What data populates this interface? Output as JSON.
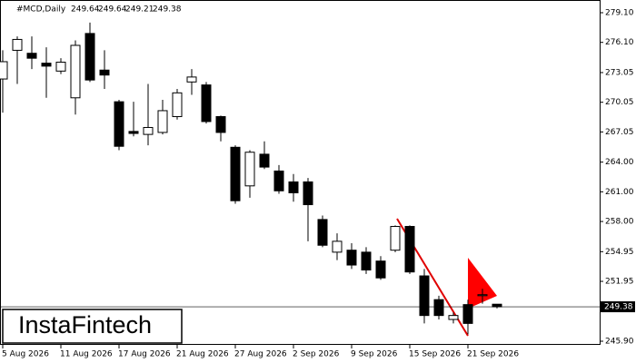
{
  "chart_data": {
    "type": "candlestick",
    "title": "#MCD,Daily",
    "header_ohlc": [
      249.64,
      249.64,
      249.21,
      249.38
    ],
    "logo": "InstaFintech",
    "categories": [
      "5 Aug 2026",
      null,
      null,
      null,
      "11 Aug 2026",
      null,
      null,
      null,
      "17 Aug 2026",
      null,
      null,
      null,
      "21 Aug 2026",
      null,
      null,
      null,
      "27 Aug 2026",
      null,
      null,
      null,
      "2 Sep 2026",
      null,
      null,
      null,
      "9 Sep 2026",
      null,
      null,
      null,
      "15 Sep 2026",
      null,
      null,
      null,
      "21 Sep 2026",
      null,
      null
    ],
    "open": [
      272.4,
      275.3,
      275.0,
      274.0,
      273.2,
      270.5,
      277.0,
      273.3,
      270.1,
      267.1,
      266.8,
      267.0,
      268.6,
      272.1,
      271.8,
      268.6,
      265.5,
      261.6,
      264.8,
      263.1,
      262.0,
      262.0,
      258.2,
      254.9,
      255.1,
      254.9,
      254.0,
      255.1,
      257.5,
      252.5,
      250.1,
      248.1,
      249.6,
      250.5,
      249.64
    ],
    "high": [
      275.3,
      276.7,
      276.7,
      275.6,
      274.5,
      276.3,
      278.1,
      275.3,
      270.3,
      270.1,
      271.9,
      270.3,
      271.4,
      273.4,
      272.1,
      268.7,
      265.7,
      265.2,
      266.1,
      263.7,
      262.8,
      262.4,
      258.6,
      256.8,
      255.8,
      255.4,
      254.5,
      257.6,
      257.6,
      253.2,
      250.5,
      248.8,
      250.1,
      251.2,
      249.64
    ],
    "low": [
      269.0,
      271.9,
      273.4,
      270.5,
      272.9,
      268.8,
      272.1,
      271.4,
      265.2,
      266.6,
      265.7,
      266.8,
      268.3,
      270.8,
      267.9,
      266.1,
      259.8,
      260.4,
      263.3,
      260.8,
      260.0,
      256.0,
      255.4,
      254.1,
      253.2,
      252.7,
      252.1,
      254.9,
      252.7,
      247.7,
      248.1,
      247.7,
      246.6,
      249.7,
      249.21
    ],
    "close": [
      274.15,
      276.4,
      274.5,
      273.7,
      274.1,
      275.8,
      272.3,
      272.8,
      265.6,
      266.9,
      267.5,
      269.2,
      271.0,
      272.6,
      268.1,
      267.0,
      260.1,
      265.0,
      263.5,
      261.1,
      260.9,
      259.7,
      255.6,
      256.0,
      253.6,
      253.1,
      252.3,
      257.5,
      252.9,
      248.5,
      248.5,
      248.5,
      247.7,
      250.6,
      249.38
    ],
    "last_price": 249.38,
    "ylim": [
      245.9,
      279.1
    ],
    "yticks": [
      {
        "value": 245.9,
        "label": "245.90"
      },
      251.95,
      254.95,
      {
        "value": 258.0,
        "label": "258.00"
      },
      {
        "value": 261.0,
        "label": "261.00"
      },
      {
        "value": 264.0,
        "label": "264.00"
      },
      267.05,
      270.05,
      273.05,
      {
        "value": 276.1,
        "label": "276.10"
      },
      {
        "value": 279.1,
        "label": "279.10"
      }
    ]
  }
}
